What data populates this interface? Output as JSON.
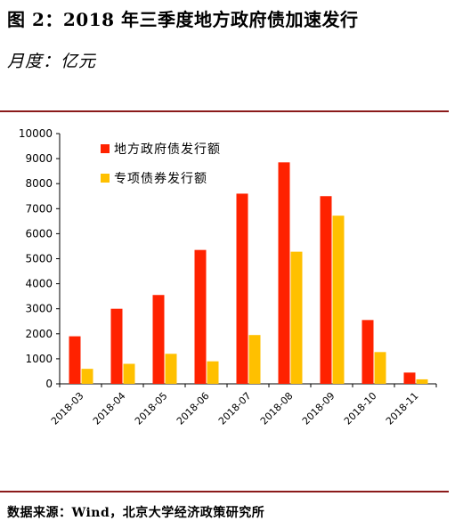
{
  "header": {
    "title": "图 2：2018 年三季度地方政府债加速发行",
    "unit": "月度：亿元"
  },
  "footer": {
    "source": "数据来源：Wind，北京大学经济政策研究所"
  },
  "colors": {
    "series_local": "#ff2200",
    "series_special": "#ffc000",
    "rule": "#8b1a1a"
  },
  "chart_data": {
    "type": "bar",
    "categories": [
      "2018-03",
      "2018-04",
      "2018-05",
      "2018-06",
      "2018-07",
      "2018-08",
      "2018-09",
      "2018-10",
      "2018-11"
    ],
    "series": [
      {
        "name": "地方政府债发行额",
        "values": [
          1900,
          3000,
          3550,
          5350,
          7600,
          8850,
          7500,
          2550,
          450
        ]
      },
      {
        "name": "专项债券发行额",
        "values": [
          600,
          800,
          1200,
          900,
          1950,
          5280,
          6720,
          1270,
          180
        ]
      }
    ],
    "yticks": [
      "0",
      "1000",
      "2000",
      "3000",
      "4000",
      "5000",
      "6000",
      "7000",
      "8000",
      "9000",
      "10000"
    ],
    "ylim": [
      0,
      10000
    ],
    "grid": false,
    "legend_position": "top-left"
  }
}
